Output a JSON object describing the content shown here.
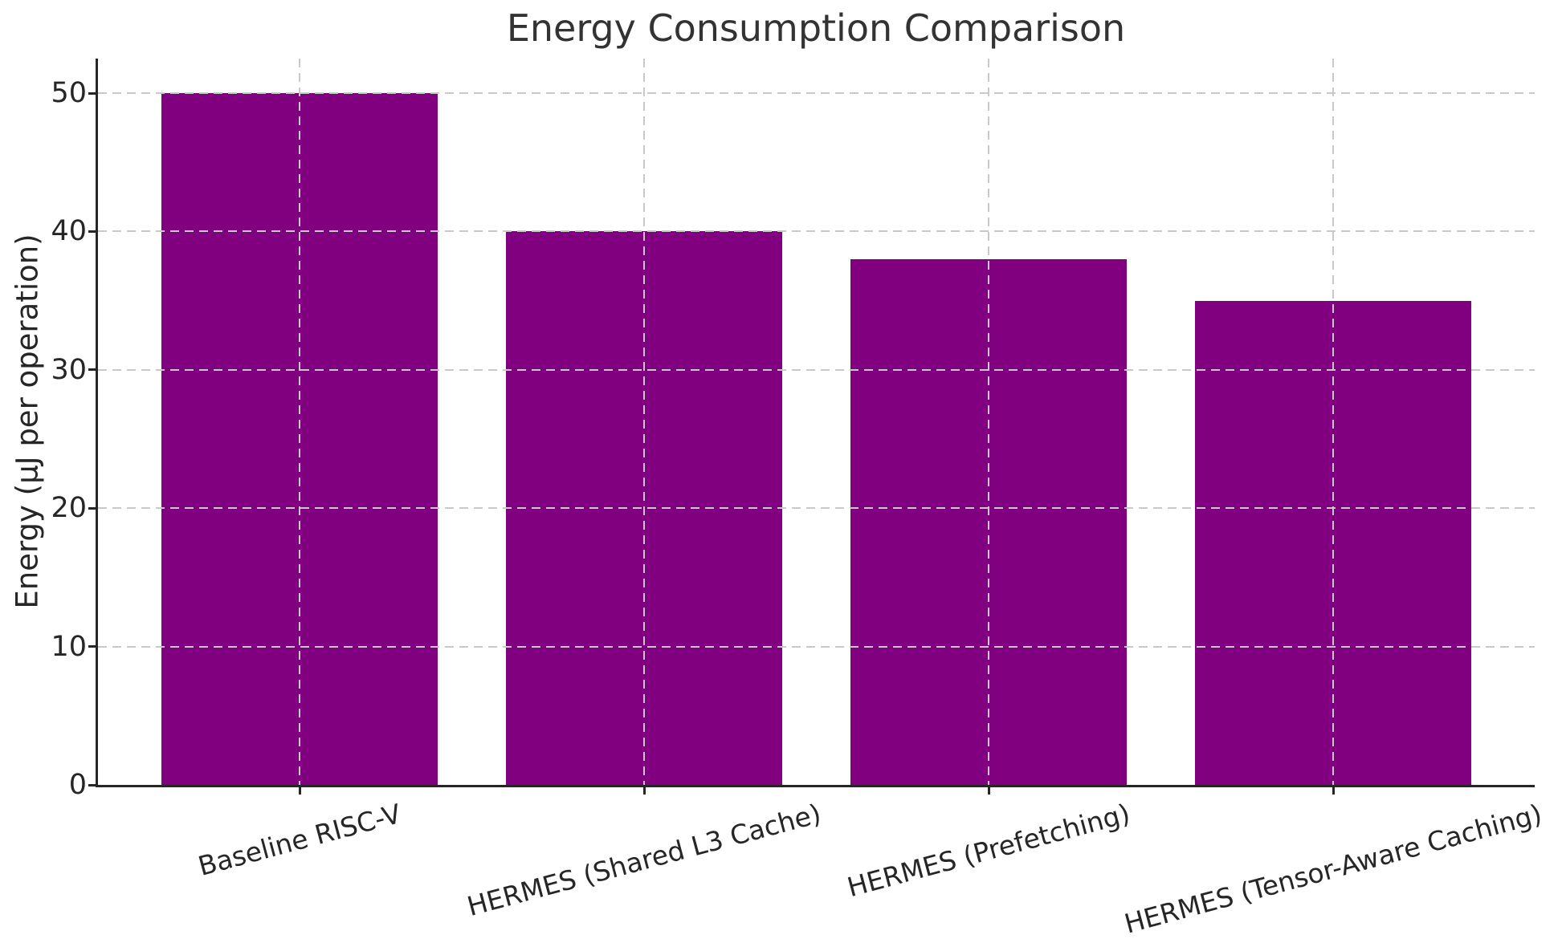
{
  "chart_data": {
    "type": "bar",
    "title": "Energy Consumption Comparison",
    "ylabel": "Energy (μJ per operation)",
    "xlabel": "",
    "categories": [
      "Baseline RISC-V",
      "HERMES (Shared L3 Cache)",
      "HERMES (Prefetching)",
      "HERMES (Tensor-Aware Caching)"
    ],
    "values": [
      50,
      40,
      38,
      35
    ],
    "yticks": [
      0,
      10,
      20,
      30,
      40,
      50
    ],
    "ylim": [
      0,
      52.5
    ],
    "bar_color": "#800080",
    "grid": "dashed, light gray, horizontal at yticks and vertical at bar centers, drawn above bars",
    "legend": "none",
    "spines": "left and bottom only"
  }
}
